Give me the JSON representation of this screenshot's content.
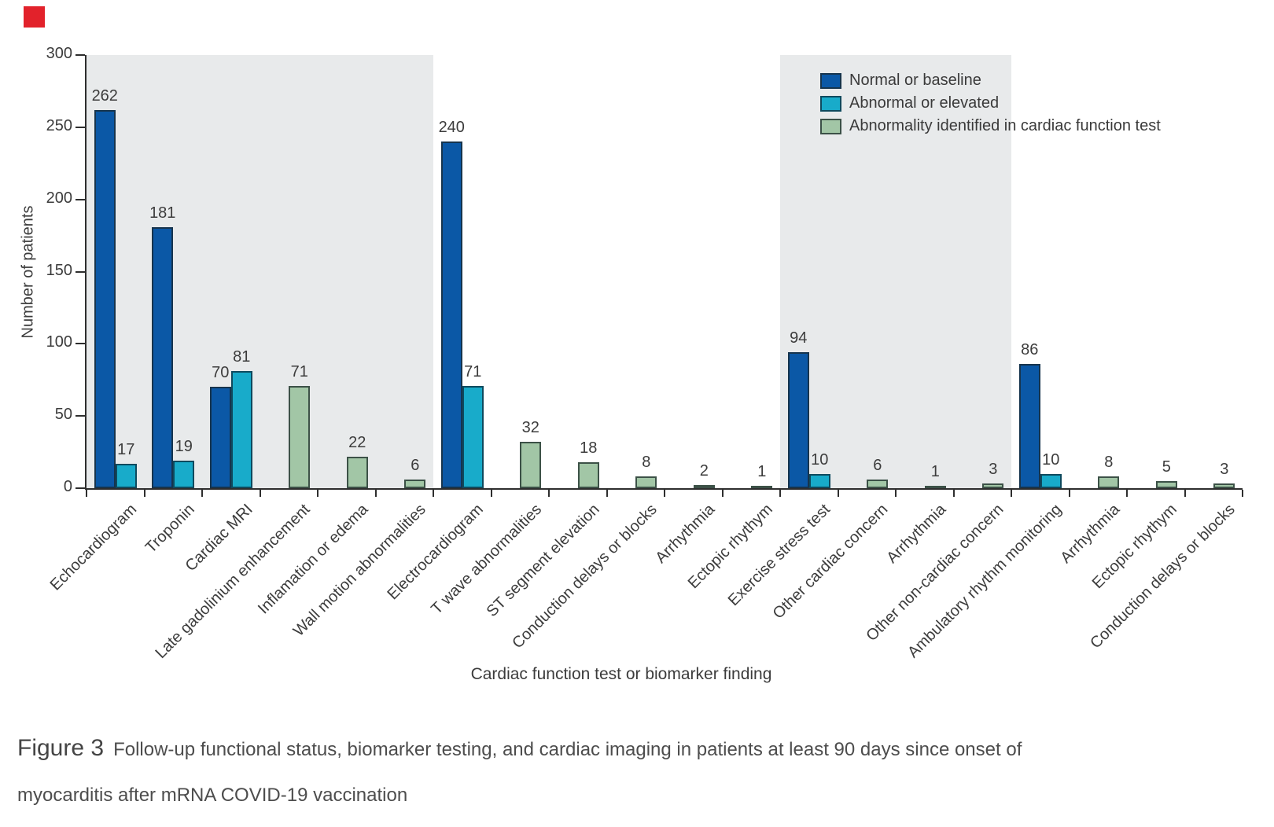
{
  "branding": {
    "red_square_color": "#e2222b"
  },
  "chart_data": {
    "type": "bar",
    "title": "",
    "ylabel": "Number of patients",
    "xlabel": "Cardiac function test or biomarker finding",
    "ylim": [
      0,
      300
    ],
    "yticks": [
      0,
      50,
      100,
      150,
      200,
      250,
      300
    ],
    "grid": false,
    "legend_position": "top-right",
    "band_color": "#e8eaeb",
    "axis_color": "#2e2e2e",
    "legend": [
      {
        "series": "normal",
        "label": "Normal or baseline",
        "fill": "#0b58a6",
        "border": "#16344d"
      },
      {
        "series": "abnormal",
        "label": "Abnormal or elevated",
        "fill": "#18abca",
        "border": "#0e4a5e"
      },
      {
        "series": "abnormality",
        "label": "Abnormality identified in cardiac function test",
        "fill": "#a2c6a6",
        "border": "#3c5147"
      }
    ],
    "shaded_groups": [
      [
        0,
        5
      ],
      [
        12,
        15
      ]
    ],
    "categories": [
      {
        "label": "Echocardiogram",
        "normal": 262,
        "abnormal": 17
      },
      {
        "label": "Troponin",
        "normal": 181,
        "abnormal": 19
      },
      {
        "label": "Cardiac MRI",
        "normal": 70,
        "abnormal": 81
      },
      {
        "label": "Late gadolinium enhancement",
        "abnormality": 71
      },
      {
        "label": "Inflamation or edema",
        "abnormality": 22
      },
      {
        "label": "Wall motion abnormalities",
        "abnormality": 6
      },
      {
        "label": "Electrocardiogram",
        "normal": 240,
        "abnormal": 71
      },
      {
        "label": "T wave abnormalities",
        "abnormality": 32
      },
      {
        "label": "ST segment elevation",
        "abnormality": 18
      },
      {
        "label": "Conduction delays or blocks",
        "abnormality": 8
      },
      {
        "label": "Arrhythmia",
        "abnormality": 2
      },
      {
        "label": "Ectopic rhythym",
        "abnormality": 1
      },
      {
        "label": "Exercise stress test",
        "normal": 94,
        "abnormal": 10
      },
      {
        "label": "Other cardiac concern",
        "abnormality": 6
      },
      {
        "label": "Arrhythmia",
        "abnormality": 1
      },
      {
        "label": "Other non-cardiac concern",
        "abnormality": 3
      },
      {
        "label": "Ambulatory rhythm monitoring",
        "normal": 86,
        "abnormal": 10
      },
      {
        "label": "Arrhythmia",
        "abnormality": 8
      },
      {
        "label": "Ectopic rhythym",
        "abnormality": 5
      },
      {
        "label": "Conduction delays or blocks",
        "abnormality": 3
      }
    ]
  },
  "caption": {
    "figure_label": "Figure 3",
    "line1": "Follow-up functional status, biomarker testing, and cardiac imaging in patients at least 90 days since onset of",
    "line2": "myocarditis after mRNA COVID-19 vaccination"
  }
}
